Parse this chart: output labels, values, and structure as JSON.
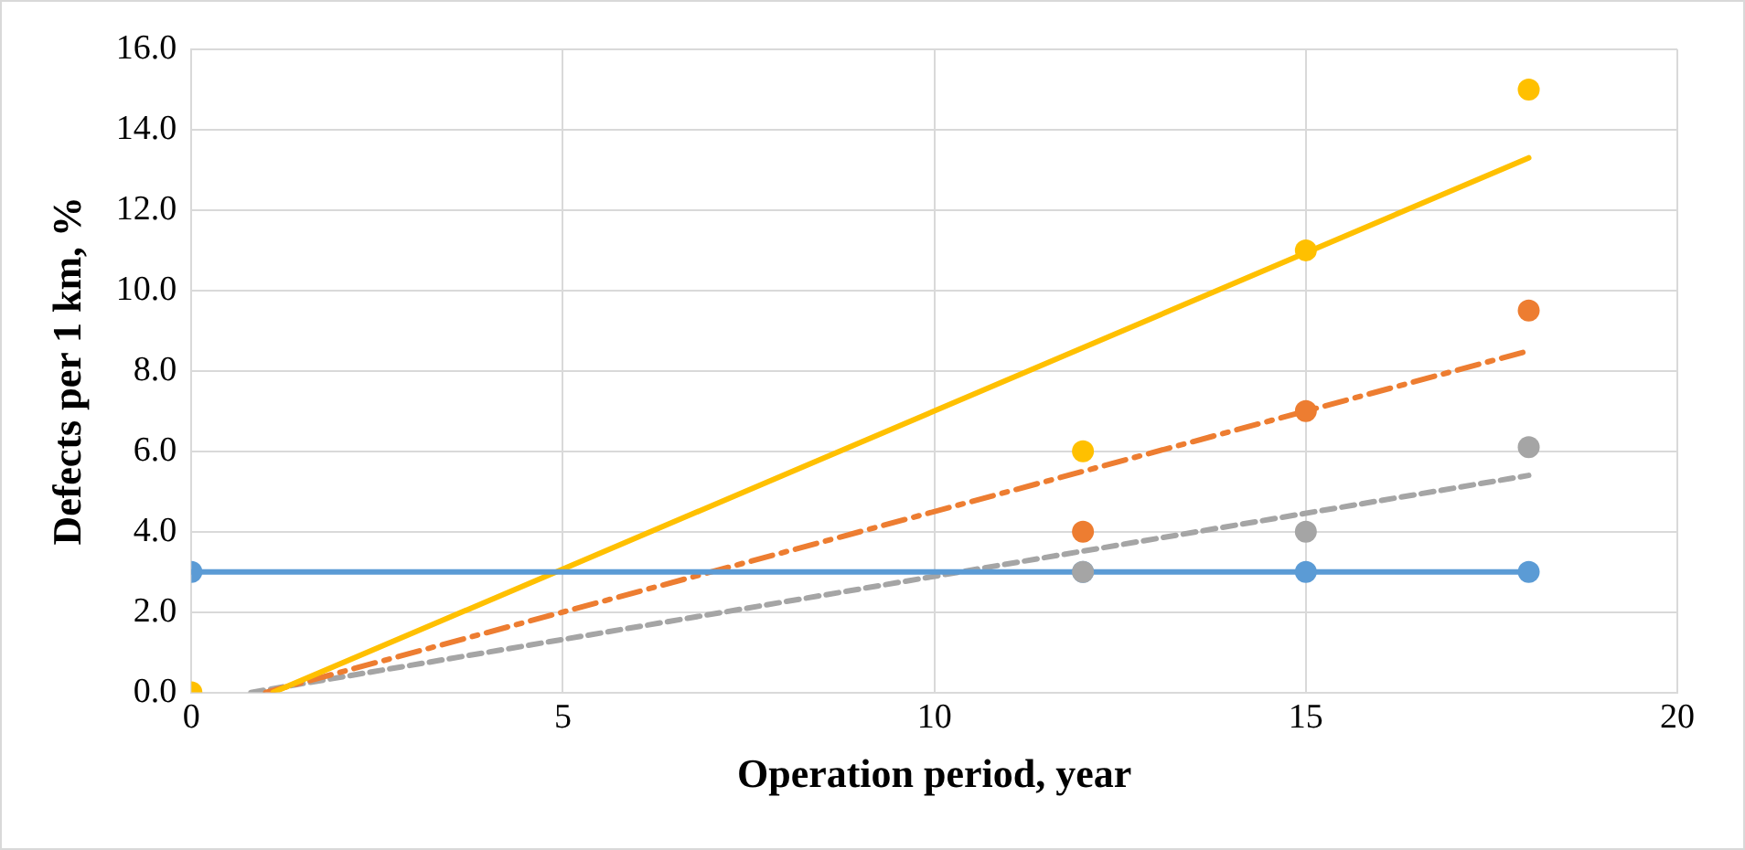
{
  "chart_data": {
    "type": "scatter",
    "xlabel": "Operation period, year",
    "ylabel": "Defects per 1 km, %",
    "xlim": [
      0,
      20
    ],
    "xticks": [
      0,
      5,
      10,
      15,
      20
    ],
    "ylim": [
      0,
      16
    ],
    "yticks": [
      {
        "value": 0,
        "label": "0.0"
      },
      {
        "value": 2,
        "label": "2.0"
      },
      {
        "value": 4,
        "label": "4.0"
      },
      {
        "value": 6,
        "label": "6.0"
      },
      {
        "value": 8,
        "label": "8.0"
      },
      {
        "value": 10,
        "label": "10.0"
      },
      {
        "value": 12,
        "label": "12.0"
      },
      {
        "value": 14,
        "label": "14.0"
      },
      {
        "value": 16,
        "label": "16.0"
      }
    ],
    "grid": true,
    "legend": false,
    "series": [
      {
        "type": "line",
        "color": "#5b9bd5",
        "x": [
          0,
          12,
          15,
          18
        ],
        "values": [
          3,
          3,
          3,
          3
        ],
        "marker": "circle",
        "line_style": "solid"
      },
      {
        "type": "line",
        "color": "#ffc000",
        "x": [
          1.1,
          18
        ],
        "values": [
          0,
          13.3
        ],
        "marker": "none",
        "line_style": "solid"
      },
      {
        "type": "line",
        "color": "#ed7d31",
        "x": [
          1,
          18
        ],
        "values": [
          0,
          8.5
        ],
        "marker": "none",
        "line_style": "dashdot"
      },
      {
        "type": "line",
        "color": "#a5a5a5",
        "x": [
          0.8,
          18
        ],
        "values": [
          0,
          5.4
        ],
        "marker": "none",
        "line_style": "dashed"
      },
      {
        "type": "scatter",
        "color": "#ffc000",
        "x": [
          0,
          12,
          15,
          18
        ],
        "values": [
          0,
          6,
          11,
          15
        ],
        "marker": "circle"
      },
      {
        "type": "scatter",
        "color": "#ed7d31",
        "x": [
          12,
          15,
          18
        ],
        "values": [
          4,
          7,
          9.5
        ],
        "marker": "circle"
      },
      {
        "type": "scatter",
        "color": "#a5a5a5",
        "x": [
          12,
          15,
          18
        ],
        "values": [
          3,
          4,
          6.1
        ],
        "marker": "circle"
      }
    ]
  }
}
